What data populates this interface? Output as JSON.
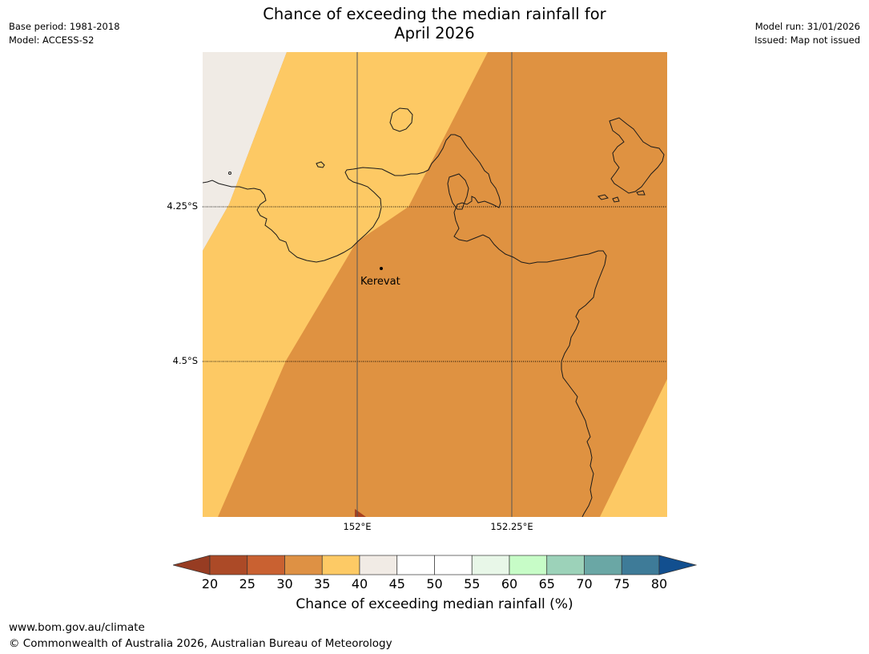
{
  "header": {
    "title_line1": "Chance of exceeding the median rainfall for",
    "title_line2": "April 2026",
    "base_period": "Base period: 1981-2018",
    "model": "Model: ACCESS-S2",
    "model_run": "Model run: 31/01/2026",
    "issued": "Issued: Map not issued"
  },
  "map": {
    "place_label": "Kerevat",
    "lat_labels": [
      "4.25°S",
      "4.5°S"
    ],
    "lon_labels": [
      "152°E",
      "152.25°E"
    ],
    "region_colors": {
      "c20_25": "#a8401e",
      "c35_40": "#fdc964",
      "c30_35": "#df9241",
      "c40_45": "#f0ebe5"
    }
  },
  "colorbar": {
    "title": "Chance of exceeding median rainfall (%)",
    "ticks": [
      "20",
      "25",
      "30",
      "35",
      "40",
      "45",
      "50",
      "55",
      "60",
      "65",
      "70",
      "75",
      "80"
    ],
    "colors": [
      "#ac4a27",
      "#c96131",
      "#de9144",
      "#fdca65",
      "#f1ebe5",
      "#ffffff",
      "#ffffff",
      "#e8f7e8",
      "#c7fcc7",
      "#9cd2b9",
      "#6aa7a5",
      "#3e7b98"
    ],
    "under_color": "#973c22",
    "over_color": "#124f8f"
  },
  "footer": {
    "url": "www.bom.gov.au/climate",
    "copyright": "© Commonwealth of Australia 2026, Australian Bureau of Meteorology"
  }
}
